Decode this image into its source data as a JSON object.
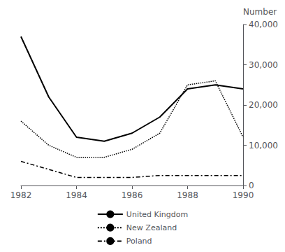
{
  "chart_data": {
    "type": "line",
    "x": [
      1982,
      1983,
      1984,
      1985,
      1986,
      1987,
      1988,
      1989,
      1990
    ],
    "series": [
      {
        "name": "United Kingdom",
        "color": "#000000",
        "line_style": "solid",
        "values": [
          37000,
          22000,
          12000,
          11000,
          13000,
          17000,
          24000,
          25000,
          24000
        ]
      },
      {
        "name": "New Zealand",
        "color": "#000000",
        "line_style": "dotted",
        "values": [
          16000,
          10000,
          7000,
          7000,
          9000,
          13000,
          25000,
          26000,
          12000
        ]
      },
      {
        "name": "Poland",
        "color": "#000000",
        "line_style": "dashdot",
        "values": [
          6000,
          4000,
          2000,
          2000,
          2000,
          2500,
          2500,
          2500,
          2500
        ]
      }
    ],
    "xlim": [
      1982,
      1990
    ],
    "xticks": [
      1982,
      1984,
      1986,
      1988,
      1990
    ],
    "ylim": [
      0,
      40000
    ],
    "yticks": [
      0,
      {
        "value": 10000,
        "label": "10,000"
      },
      {
        "value": 20000,
        "label": "20,000"
      },
      {
        "value": 30000,
        "label": "30,000"
      },
      {
        "value": 40000,
        "label": "40,000"
      }
    ],
    "ylabel": "Number",
    "grid": false,
    "legend": "bottom"
  }
}
